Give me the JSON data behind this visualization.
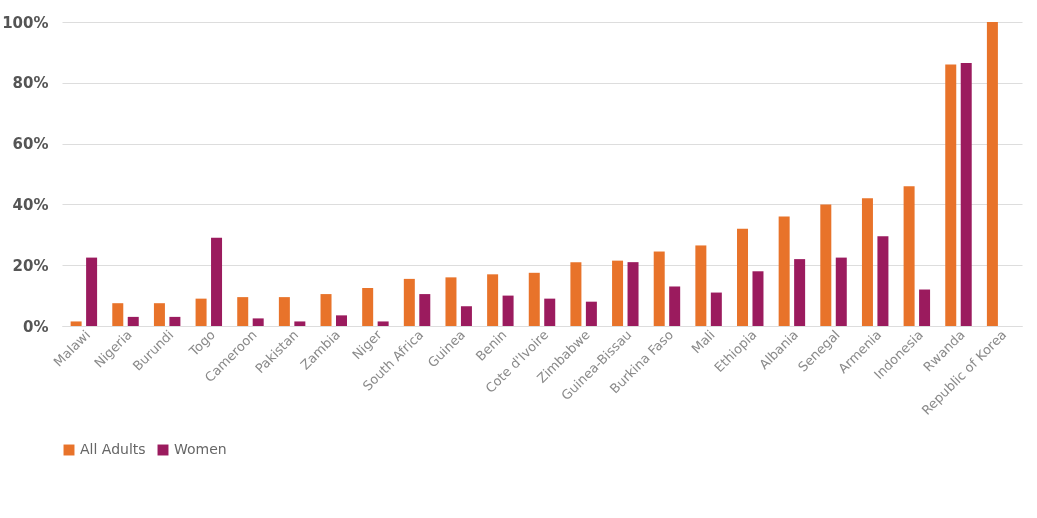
{
  "chart_data": {
    "type": "bar",
    "categories": [
      "Malawi",
      "Nigeria",
      "Burundi",
      "Togo",
      "Cameroon",
      "Pakistan",
      "Zambia",
      "Niger",
      "South Africa",
      "Guinea",
      "Benin",
      "Cote d'Ivoire",
      "Zimbabwe",
      "Guinea-Bissau",
      "Burkina Faso",
      "Mali",
      "Ethiopia",
      "Albania",
      "Senegal",
      "Armenia",
      "Indonesia",
      "Rwanda",
      "Republic of Korea"
    ],
    "series": [
      {
        "name": "All Adults",
        "color": "#e8732a",
        "values": [
          1.5,
          7.5,
          7.5,
          9,
          9.5,
          9.5,
          10.5,
          12.5,
          15.5,
          16,
          17,
          17.5,
          21,
          21.5,
          24.5,
          26.5,
          32,
          36,
          40,
          42,
          46,
          86,
          100
        ]
      },
      {
        "name": "Women",
        "color": "#9b1b5e",
        "values": [
          22.5,
          3,
          3,
          29,
          2.5,
          1.5,
          3.5,
          1.5,
          10.5,
          6.5,
          10,
          9,
          8,
          21,
          13,
          11,
          18,
          22,
          22.5,
          29.5,
          12,
          86.5,
          null
        ]
      }
    ],
    "ylim": [
      0,
      100
    ],
    "yticks": [
      {
        "value": 0,
        "label": "0%"
      },
      {
        "value": 20,
        "label": "20%"
      },
      {
        "value": 40,
        "label": "40%"
      },
      {
        "value": 60,
        "label": "60%"
      },
      {
        "value": 80,
        "label": "80%"
      },
      {
        "value": 100,
        "label": "100%"
      }
    ],
    "grid": "y",
    "legend": "bottom"
  }
}
